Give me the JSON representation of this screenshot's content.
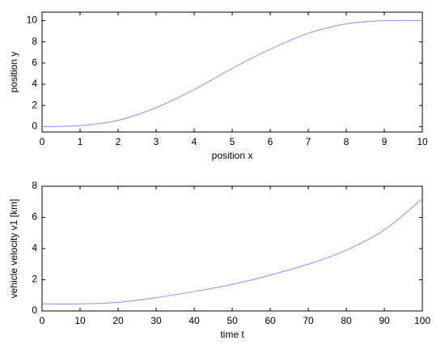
{
  "chart_data": [
    {
      "type": "line",
      "xlabel": "position x",
      "ylabel": "position y",
      "x": [
        0,
        1,
        2,
        3,
        4,
        5,
        6,
        7,
        8,
        9,
        10
      ],
      "series": [
        {
          "color": "#8c8cff",
          "values": [
            0,
            0.1,
            0.6,
            1.8,
            3.5,
            5.5,
            7.3,
            8.8,
            9.7,
            10,
            10
          ]
        }
      ],
      "xlim": [
        0,
        10
      ],
      "xticks": [
        0,
        1,
        2,
        3,
        4,
        5,
        6,
        7,
        8,
        9,
        10
      ],
      "ylim": [
        -0.5,
        10.8
      ],
      "yticks": [
        0,
        2,
        4,
        6,
        8,
        10
      ]
    },
    {
      "type": "line",
      "xlabel": "time t",
      "ylabel": "vehicle velocity v1 [km]",
      "x": [
        0,
        10,
        20,
        30,
        40,
        50,
        60,
        70,
        80,
        90,
        100
      ],
      "series": [
        {
          "color": "#8c8cff",
          "values": [
            0.45,
            0.45,
            0.55,
            0.85,
            1.25,
            1.7,
            2.3,
            3.0,
            3.9,
            5.2,
            7.2
          ]
        }
      ],
      "xlim": [
        0,
        100
      ],
      "xticks": [
        0,
        10,
        20,
        30,
        40,
        50,
        60,
        70,
        80,
        90,
        100
      ],
      "ylim": [
        0,
        8
      ],
      "yticks": [
        0,
        2,
        4,
        6,
        8
      ]
    }
  ]
}
